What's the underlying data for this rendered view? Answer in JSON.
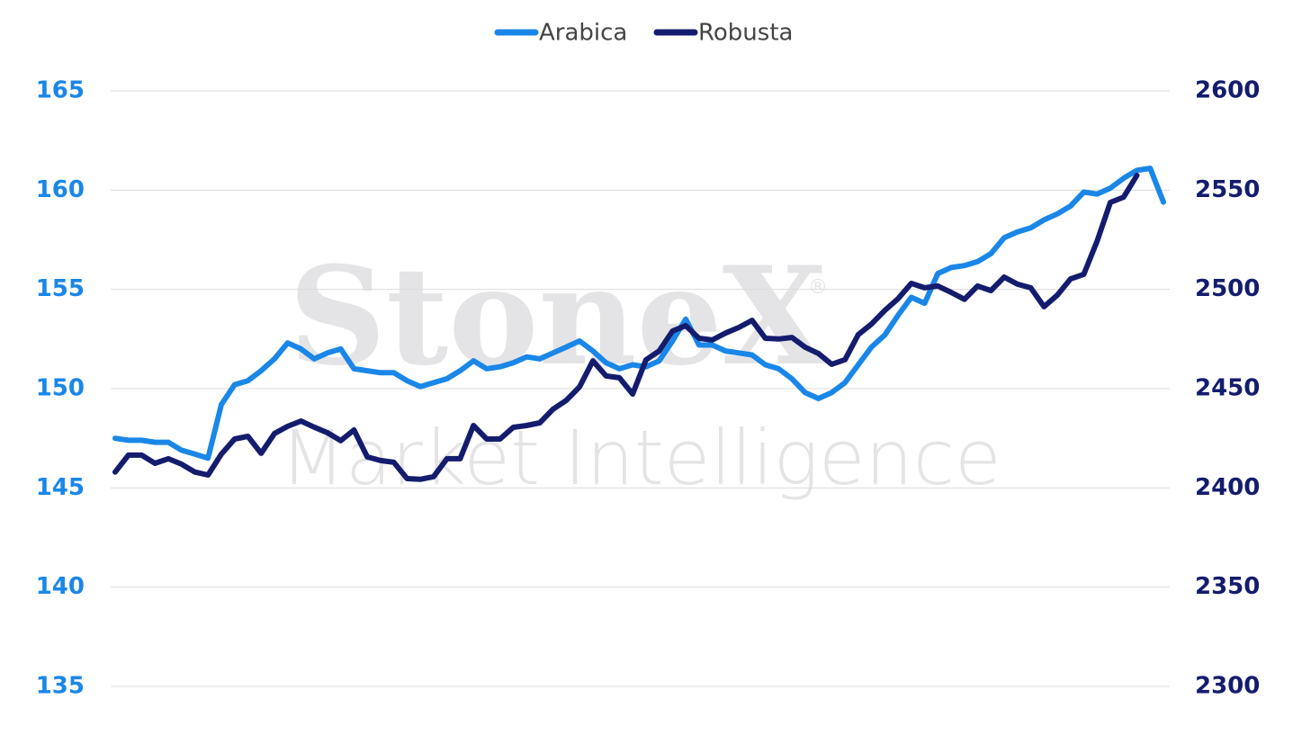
{
  "chart_data": {
    "type": "line",
    "watermark": "StoneX",
    "watermark_mark": "®",
    "watermark_sub": "Market Intelligence",
    "categories": [
      null,
      null,
      null,
      null,
      null,
      null,
      null,
      null,
      null,
      null,
      null,
      null,
      null,
      null,
      null,
      null,
      null,
      null,
      null,
      null,
      null,
      null,
      null,
      null,
      null,
      null,
      null,
      null,
      null,
      null,
      null,
      null,
      null,
      null,
      null,
      null,
      null,
      null,
      null,
      null,
      null,
      null,
      null,
      null,
      null,
      null,
      null,
      null,
      null,
      null,
      null,
      null,
      null,
      null,
      null,
      null,
      null,
      null,
      null,
      null,
      null,
      null,
      null,
      null,
      null,
      null,
      null,
      null,
      null,
      null,
      null,
      null,
      null,
      null,
      null,
      null,
      null,
      null,
      null,
      null
    ],
    "series": [
      {
        "name": "Arabica",
        "color": "#1a87e8",
        "values": [
          147.5,
          147.4,
          147.4,
          147.3,
          147.3,
          146.9,
          146.7,
          146.5,
          149.2,
          150.2,
          150.4,
          150.9,
          151.5,
          152.3,
          152.0,
          151.5,
          151.8,
          152.0,
          151.0,
          150.9,
          150.8,
          150.8,
          150.4,
          150.1,
          150.3,
          150.5,
          150.9,
          151.4,
          151.0,
          151.1,
          151.3,
          151.6,
          151.5,
          151.8,
          152.1,
          152.4,
          151.9,
          151.3,
          151.0,
          151.2,
          151.1,
          151.4,
          152.4,
          153.5,
          152.2,
          152.2,
          151.9,
          151.8,
          151.7,
          151.2,
          151.0,
          150.5,
          149.8,
          149.5,
          149.8,
          150.3,
          151.2,
          152.1,
          152.7,
          153.7,
          154.6,
          154.3,
          155.8,
          156.1,
          156.2,
          156.4,
          156.8,
          157.6,
          157.9,
          158.1,
          158.5,
          158.8,
          159.2,
          159.9,
          159.8,
          160.1,
          160.6,
          161.0,
          161.1,
          159.4
        ]
      },
      {
        "name": "Robusta",
        "color": "#141c6e",
        "axis": "y2",
        "values": [
          2408,
          2416.5,
          2416.5,
          2412.4,
          2414.7,
          2412,
          2408,
          2406.5,
          2417,
          2424.6,
          2426,
          2417.4,
          2427.4,
          2431,
          2433.7,
          2430.6,
          2427.8,
          2423.8,
          2429.2,
          2415.6,
          2413.8,
          2412.9,
          2404.7,
          2404.3,
          2405.7,
          2414.7,
          2414.7,
          2431.4,
          2424.6,
          2424.6,
          2430.5,
          2431.4,
          2432.8,
          2439.6,
          2444.1,
          2450.9,
          2464,
          2456.4,
          2455.5,
          2447.3,
          2464.5,
          2469,
          2479,
          2481.7,
          2475.4,
          2474.5,
          2478,
          2480.8,
          2484.4,
          2475.4,
          2475,
          2475.8,
          2470.9,
          2467.7,
          2462.3,
          2464.6,
          2477.2,
          2482.6,
          2489.4,
          2495.3,
          2503,
          2500.8,
          2501.7,
          2498.5,
          2495,
          2501.7,
          2499.4,
          2506.2,
          2502.6,
          2500.8,
          2491.3,
          2497.1,
          2505.3,
          2507.6,
          2524.3,
          2543.8,
          2546.5,
          2557.4,
          null,
          null
        ]
      }
    ],
    "ylim": [
      135,
      165
    ],
    "yticks": [
      135,
      140,
      145,
      150,
      155,
      160,
      165
    ],
    "y2lim": [
      2300,
      2600
    ],
    "y2ticks": [
      2300,
      2350,
      2400,
      2450,
      2500,
      2550,
      2600
    ],
    "grid": true,
    "legend": "top"
  }
}
